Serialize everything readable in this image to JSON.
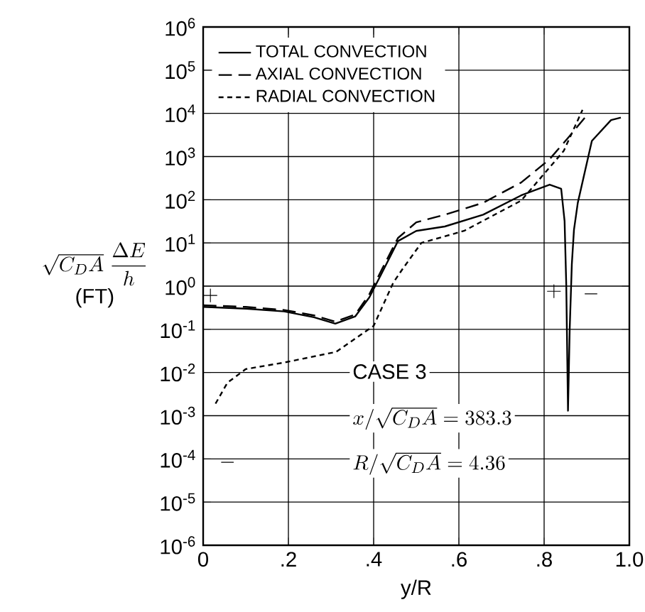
{
  "chart_data": {
    "type": "line",
    "xlabel": "y/R",
    "ylabel": "\\begin{array}{c}\\sqrt{C_D A}\\;\\dfrac{\\Delta E}{h}\\\\[4pt] \\mbox{(FT)}\\end{array}",
    "xlim": [
      0,
      1
    ],
    "xticks": [
      0,
      {
        "value": 0.2,
        "label": ".2"
      },
      {
        "value": 0.4,
        "label": ".4"
      },
      {
        "value": 0.6,
        "label": ".6"
      },
      {
        "value": 0.8,
        "label": ".8"
      },
      {
        "value": 1.0,
        "label": "1.0"
      }
    ],
    "ylim": [
      1e-06,
      1000000.0
    ],
    "log": "y",
    "yticks": [
      {
        "value": 1e-06,
        "label": "10$^{-6}$"
      },
      {
        "value": 1e-05,
        "label": "10$^{-5}$"
      },
      {
        "value": 0.0001,
        "label": "10$^{-4}$"
      },
      {
        "value": 0.001,
        "label": "10$^{-3}$"
      },
      {
        "value": 0.01,
        "label": "10$^{-2}$"
      },
      {
        "value": 0.1,
        "label": "10$^{-1}$"
      },
      {
        "value": 1,
        "label": "10$^{0}$"
      },
      {
        "value": 10,
        "label": "10$^{1}$"
      },
      {
        "value": 100,
        "label": "10$^{2}$"
      },
      {
        "value": 1000,
        "label": "10$^{3}$"
      },
      {
        "value": 10000,
        "label": "10$^{4}$"
      },
      {
        "value": 100000,
        "label": "10$^{5}$"
      },
      {
        "value": 1000000,
        "label": "10$^{6}$"
      }
    ],
    "grid": true,
    "legend": "top left",
    "marker": "none",
    "series": [
      {
        "name": "TOTAL CONVECTION",
        "color": "#000000",
        "line_style": "solid",
        "x": [
          0,
          0.1,
          0.19,
          0.26,
          0.31,
          0.357,
          0.39,
          0.418,
          0.457,
          0.5,
          0.567,
          0.657,
          0.746,
          0.813,
          0.84,
          0.848,
          0.852,
          0.856,
          0.86,
          0.865,
          0.87,
          0.879,
          0.912,
          0.957,
          0.98
        ],
        "values": [
          0.33,
          0.3,
          0.26,
          0.19,
          0.135,
          0.2,
          0.55,
          1.9,
          11,
          19,
          24,
          45,
          126,
          224,
          180,
          32,
          1,
          0.0013,
          0.1,
          3.2,
          20,
          85,
          2300,
          7000,
          8000
        ]
      },
      {
        "name": "AXIAL CONVECTION",
        "color": "#000000",
        "line_style": "dashed",
        "x": [
          0,
          0.1,
          0.19,
          0.26,
          0.31,
          0.357,
          0.39,
          0.418,
          0.457,
          0.5,
          0.567,
          0.657,
          0.746,
          0.812,
          0.86,
          0.9
        ],
        "values": [
          0.36,
          0.33,
          0.28,
          0.21,
          0.15,
          0.22,
          0.65,
          2.3,
          13,
          30,
          45,
          85,
          250,
          850,
          3000,
          9000
        ]
      },
      {
        "name": "RADIAL CONVECTION",
        "color": "#000000",
        "line_style": "dotted",
        "x": [
          0.029,
          0.057,
          0.1,
          0.19,
          0.312,
          0.4,
          0.446,
          0.468,
          0.512,
          0.612,
          0.746,
          0.846,
          0.89
        ],
        "values": [
          0.0019,
          0.0058,
          0.012,
          0.017,
          0.03,
          0.12,
          1.2,
          2.5,
          10,
          19,
          95,
          1350,
          12000
        ]
      }
    ],
    "annotations": [
      "\\mbox{CASE 3}",
      "x/\\sqrt{C_D A} = 383.3",
      "R/\\sqrt{C_D A} = 4.36",
      "+",
      "-",
      "+",
      "-"
    ]
  }
}
